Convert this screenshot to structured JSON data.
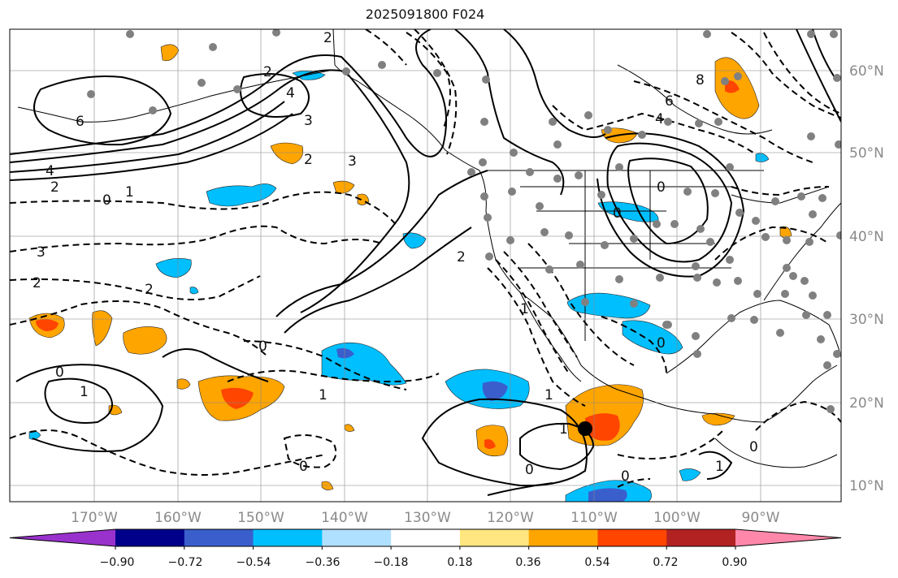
{
  "title": "2025091800 F024",
  "map": {
    "longitude_labels": [
      "170°W",
      "160°W",
      "150°W",
      "140°W",
      "130°W",
      "120°W",
      "110°W",
      "100°W",
      "90°W"
    ],
    "latitude_labels": [
      "60°N",
      "50°N",
      "40°N",
      "30°N",
      "20°N",
      "10°N"
    ],
    "contour_labels": [
      "2",
      "4",
      "3",
      "6",
      "4",
      "2",
      "0",
      "1",
      "2",
      "3",
      "0",
      "2",
      "2",
      "0",
      "1",
      "1",
      "0",
      "1",
      "0",
      "4",
      "6",
      "8",
      "0",
      "0",
      "0",
      "1",
      "1",
      "0",
      "0",
      "1",
      "2",
      "3",
      "2"
    ]
  },
  "colorbar": {
    "ticks": [
      "−0.90",
      "−0.72",
      "−0.54",
      "−0.36",
      "−0.18",
      "0.18",
      "0.36",
      "0.54",
      "0.72",
      "0.90"
    ],
    "colors": [
      "#9932cc",
      "#00008b",
      "#3a5fcd",
      "#00bfff",
      "#b0e0ff",
      "#ffffff",
      "#ffe680",
      "#ffa500",
      "#ff4500",
      "#b22222",
      "#ff88aa"
    ]
  }
}
